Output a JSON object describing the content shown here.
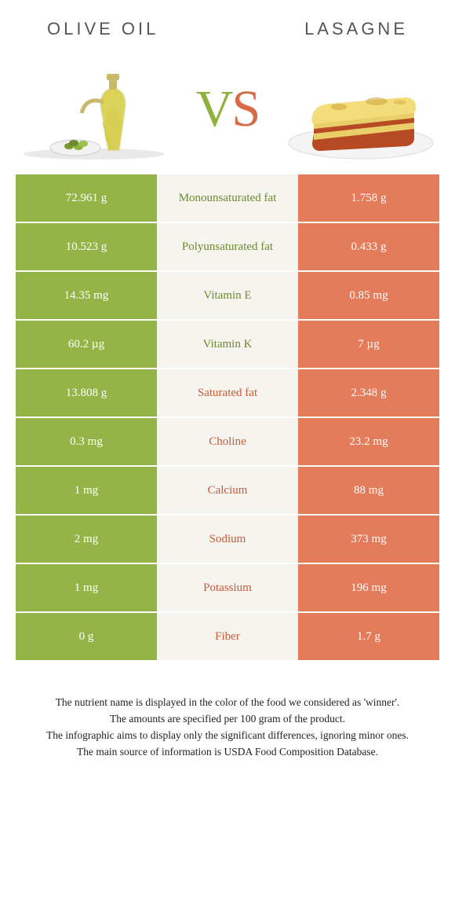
{
  "header": {
    "left": "Olive oil",
    "right": "Lasagne"
  },
  "vs": {
    "v": "V",
    "s": "S"
  },
  "colors": {
    "olive": "#94b447",
    "lasagne": "#e47b5a",
    "mid_bg": "#f6f4ef",
    "neutral": "#e8e6de",
    "olive_text": "#6d8a2e",
    "lasagne_text": "#c85a36"
  },
  "rows": [
    {
      "left": "72.961 g",
      "label": "Monounsaturated fat",
      "right": "1.758 g",
      "winner": "left"
    },
    {
      "left": "10.523 g",
      "label": "Polyunsaturated fat",
      "right": "0.433 g",
      "winner": "left"
    },
    {
      "left": "14.35 mg",
      "label": "Vitamin E",
      "right": "0.85 mg",
      "winner": "left"
    },
    {
      "left": "60.2 µg",
      "label": "Vitamin K",
      "right": "7 µg",
      "winner": "left"
    },
    {
      "left": "13.808 g",
      "label": "Saturated fat",
      "right": "2.348 g",
      "winner": "right"
    },
    {
      "left": "0.3 mg",
      "label": "Choline",
      "right": "23.2 mg",
      "winner": "right"
    },
    {
      "left": "1 mg",
      "label": "Calcium",
      "right": "88 mg",
      "winner": "right"
    },
    {
      "left": "2 mg",
      "label": "Sodium",
      "right": "373 mg",
      "winner": "right"
    },
    {
      "left": "1 mg",
      "label": "Potassium",
      "right": "196 mg",
      "winner": "right"
    },
    {
      "left": "0 g",
      "label": "Fiber",
      "right": "1.7 g",
      "winner": "right"
    }
  ],
  "footer": {
    "l1": "The nutrient name is displayed in the color of the food we considered as 'winner'.",
    "l2": "The amounts are specified per 100 gram of the product.",
    "l3": "The infographic aims to display only the significant differences, ignoring minor ones.",
    "l4": "The main source of information is USDA Food Composition Database."
  }
}
